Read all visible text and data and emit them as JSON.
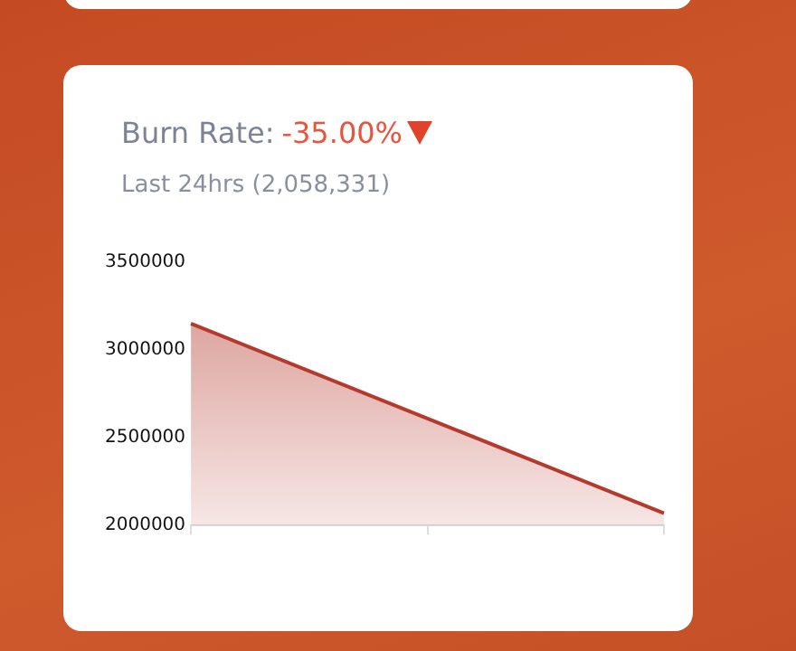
{
  "chart_data": {
    "type": "area",
    "title": "Burn Rate:",
    "subtitle": "Last 24hrs (2,058,331)",
    "annotations": [
      "-35.00%"
    ],
    "categories": [
      null,
      null,
      null
    ],
    "series": [
      {
        "color": "#b5392c",
        "values": [
          3150000,
          2610000,
          2070000
        ]
      }
    ],
    "ylim": [
      2000000,
      3500000
    ],
    "yticks": [
      2000000,
      2500000,
      3000000,
      3500000
    ],
    "grid": false,
    "legend": false,
    "marker": "none"
  }
}
